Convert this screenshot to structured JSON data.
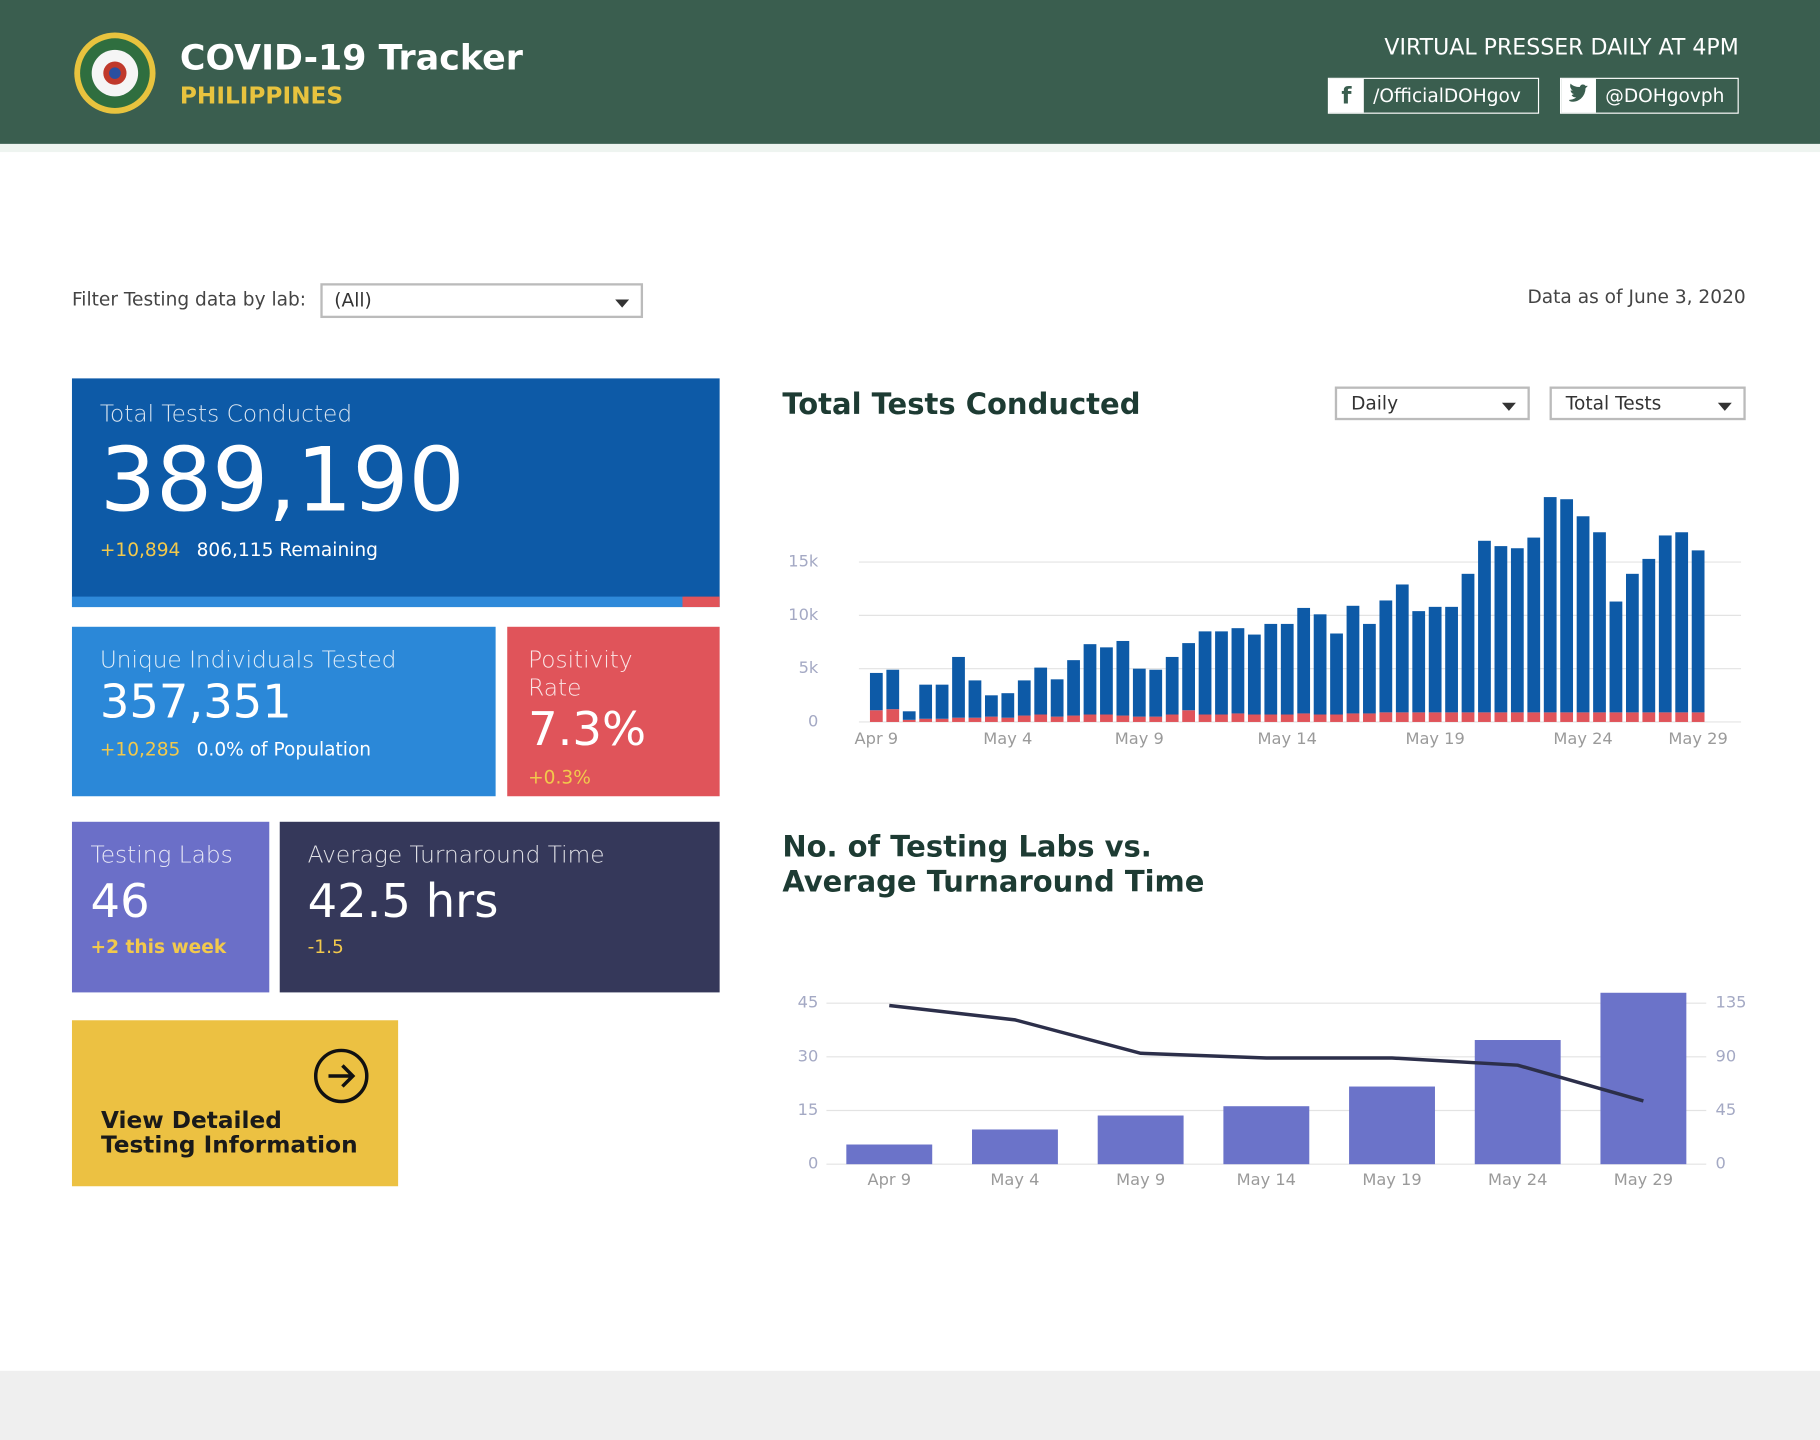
{
  "header": {
    "title": "COVID-19 Tracker",
    "subtitle": "PHILIPPINES",
    "presser": "VIRTUAL PRESSER DAILY AT 4PM",
    "facebook": "/OfficialDOHgov",
    "twitter": "@DOHgovph"
  },
  "filter": {
    "label": "Filter Testing data by lab:",
    "value": "(All)"
  },
  "data_as_of": "Data as of June 3, 2020",
  "cards": [
    {
      "title": "Total Tests Conducted",
      "value": "389,190",
      "change": "+10,894",
      "note": "806,115 Remaining"
    },
    {
      "title": "Unique Individuals Tested",
      "value": "357,351",
      "change": "+10,285",
      "note": "0.0% of Population"
    },
    {
      "title": "Positivity Rate",
      "value": "7.3%",
      "change": "+0.3%"
    },
    {
      "title": "Testing Labs",
      "value": "46",
      "change": "+2 this week"
    },
    {
      "title": "Average Turnaround Time",
      "value": "42.5 hrs",
      "change": "-1.5"
    }
  ],
  "button": [
    "View Detailed",
    "Testing Information"
  ],
  "chart_data": [
    {
      "type": "stacked_bar",
      "title": "Total Tests Conducted",
      "controls": [
        "Daily",
        "Total Tests"
      ],
      "categories": [
        "Apr 9",
        null,
        null,
        null,
        null,
        null,
        null,
        null,
        "May 4",
        null,
        null,
        null,
        null,
        null,
        null,
        null,
        "May 9",
        null,
        null,
        null,
        null,
        null,
        null,
        null,
        null,
        "May 14",
        null,
        null,
        null,
        null,
        null,
        null,
        null,
        null,
        "May 19",
        null,
        null,
        null,
        null,
        null,
        null,
        null,
        null,
        "May 24",
        null,
        null,
        null,
        null,
        null,
        null,
        "May 29"
      ],
      "series": [
        {
          "color": "#e0545a",
          "values": [
            1100,
            1200,
            200,
            300,
            300,
            400,
            400,
            500,
            400,
            600,
            700,
            500,
            600,
            700,
            700,
            600,
            500,
            500,
            700,
            1100,
            700,
            700,
            800,
            700,
            700,
            700,
            800,
            700,
            700,
            800,
            800,
            900,
            900,
            900,
            900,
            900,
            900,
            900,
            900,
            900,
            900,
            900,
            900,
            900,
            900,
            900,
            900,
            900,
            900,
            900,
            900
          ]
        },
        {
          "color": "#0d5aa7",
          "values": [
            3500,
            3700,
            800,
            3200,
            3200,
            5700,
            3500,
            2000,
            2300,
            3300,
            4400,
            3500,
            5200,
            6600,
            6300,
            7000,
            4500,
            4400,
            5400,
            6300,
            7800,
            7800,
            8000,
            7500,
            8500,
            8500,
            9900,
            9400,
            7600,
            10100,
            8400,
            10500,
            12000,
            9500,
            9900,
            9900,
            13000,
            16100,
            15600,
            15400,
            16400,
            20200,
            20000,
            18400,
            16900,
            10400,
            13000,
            14400,
            16600,
            16900,
            15200
          ]
        }
      ],
      "ylim": [
        0,
        22000
      ],
      "yticks": [
        0,
        {
          "value": 5000,
          "label": "5k"
        },
        {
          "value": 10000,
          "label": "10k"
        },
        {
          "value": 15000,
          "label": "15k"
        }
      ],
      "grid": true
    },
    {
      "type": "bar_line",
      "title": [
        "No. of Testing Labs vs.",
        "Average Turnaround Time"
      ],
      "categories": [
        "Apr 9",
        "May 4",
        "May 9",
        "May 14",
        "May 19",
        "May 24",
        "May 29"
      ],
      "series": [
        {
          "type": "bar",
          "color": "#6b73c9",
          "values": [
            5.5,
            9.7,
            13.6,
            16.2,
            21.7,
            34.7,
            47.9
          ]
        },
        {
          "type": "line",
          "axis": "y2",
          "color": "#2c2f4a",
          "values": [
            133,
            121,
            93,
            89,
            89,
            83,
            53
          ]
        }
      ],
      "ylim": [
        0,
        48
      ],
      "yticks": [
        0,
        15,
        30,
        45
      ],
      "y2lim": [
        0,
        144
      ],
      "y2ticks": [
        0,
        45,
        90,
        135
      ],
      "grid": true
    }
  ]
}
